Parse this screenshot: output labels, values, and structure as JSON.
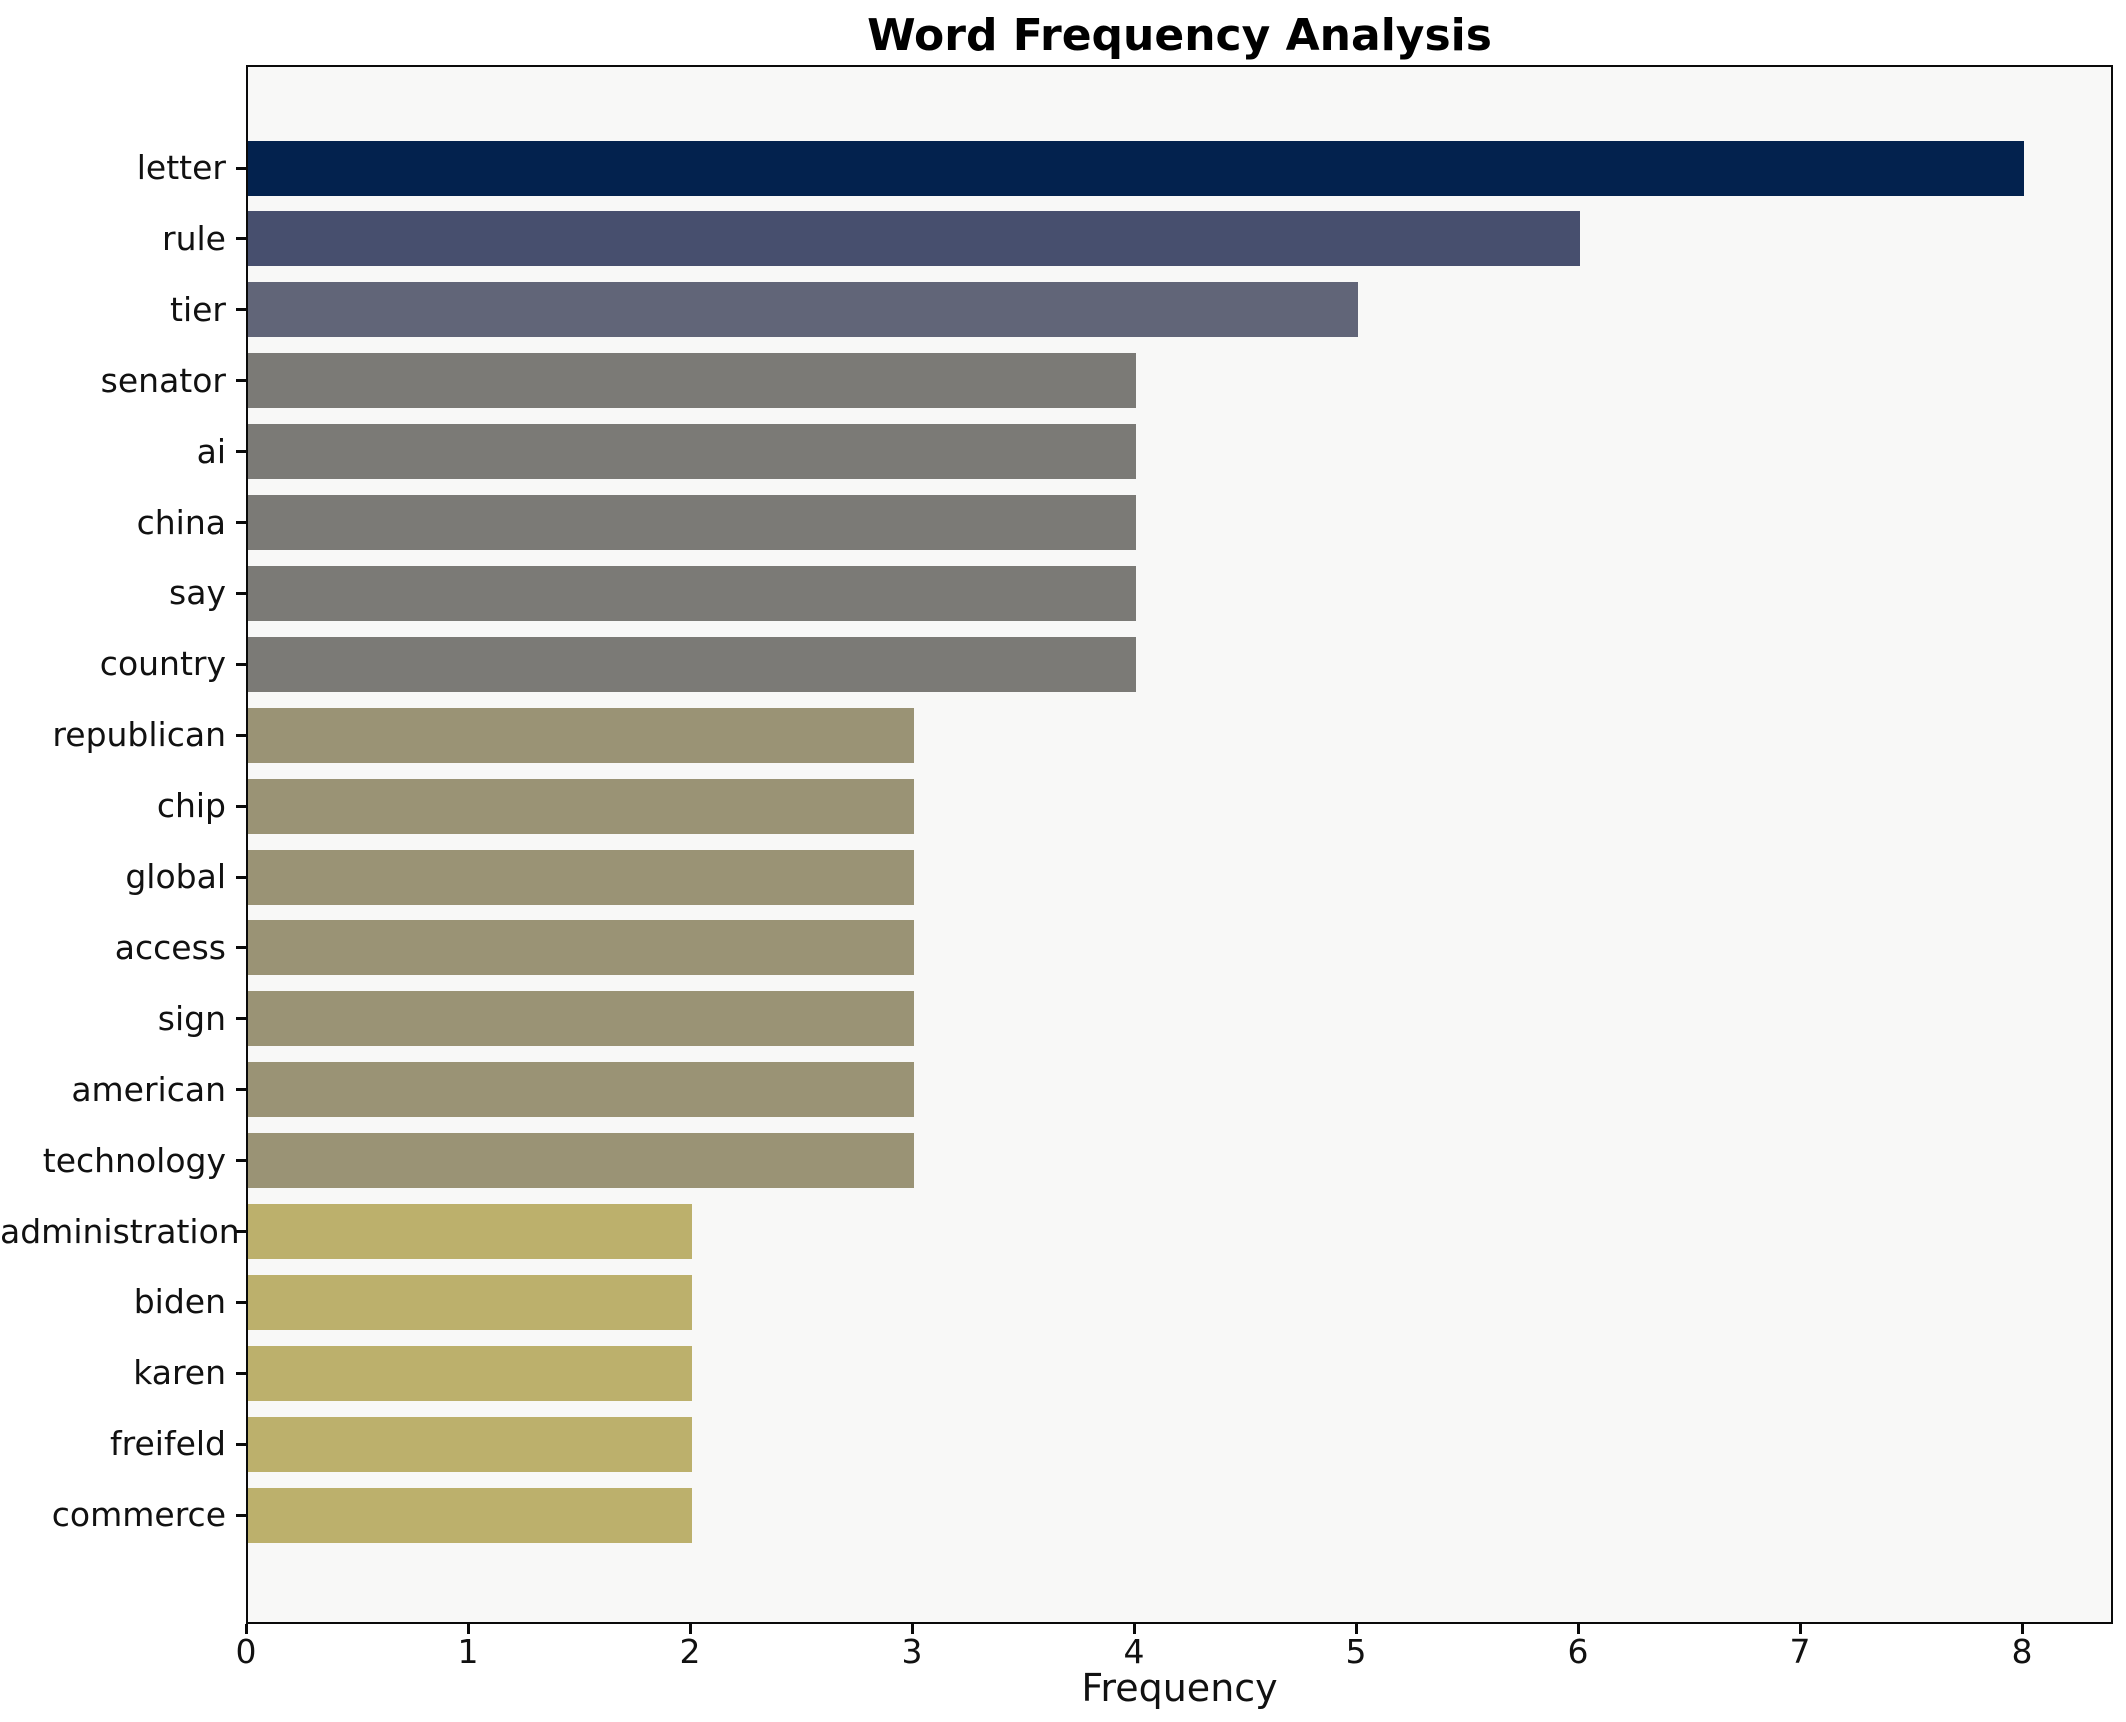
{
  "chart_data": {
    "type": "bar",
    "orientation": "horizontal",
    "title": "Word Frequency Analysis",
    "xlabel": "Frequency",
    "ylabel": "",
    "categories": [
      "letter",
      "rule",
      "tier",
      "senator",
      "ai",
      "china",
      "say",
      "country",
      "republican",
      "chip",
      "global",
      "access",
      "sign",
      "american",
      "technology",
      "administration",
      "biden",
      "karen",
      "freifeld",
      "commerce"
    ],
    "values": [
      8,
      6,
      5,
      4,
      4,
      4,
      4,
      4,
      3,
      3,
      3,
      3,
      3,
      3,
      3,
      2,
      2,
      2,
      2,
      2
    ],
    "bar_colors": [
      "#03224e",
      "#474f6e",
      "#616578",
      "#7b7a76",
      "#7b7a76",
      "#7b7a76",
      "#7b7a76",
      "#7b7a76",
      "#9a9375",
      "#9a9375",
      "#9a9375",
      "#9a9375",
      "#9a9375",
      "#9a9375",
      "#9a9375",
      "#bcb06c",
      "#bcb06c",
      "#bcb06c",
      "#bcb06c",
      "#bcb06c"
    ],
    "xticks": [
      "0",
      "1",
      "2",
      "3",
      "4",
      "5",
      "6",
      "7",
      "8"
    ],
    "xlim": [
      0,
      8.41
    ],
    "grid": false,
    "legend": false,
    "colormap": "cividis",
    "plot_background": "#f8f8f7",
    "figure_background": "#ffffff",
    "spine_color": "#0a0a0a",
    "text_color": "#111111"
  }
}
